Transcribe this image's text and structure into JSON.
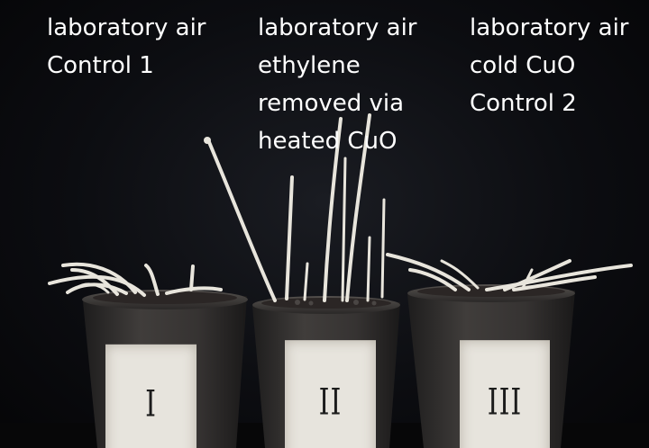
{
  "captions": [
    "laboratory air\nControl 1",
    "laboratory air\nethylene\nremoved via\nheated CuO",
    "laboratory air\ncold CuO\nControl 2"
  ],
  "pot_labels": [
    "I",
    "II",
    "III"
  ],
  "colors": {
    "background": "#0c0d11",
    "caption_text": "#ffffff",
    "seedling": "#e8e5dc",
    "pot": "#3a3837",
    "label_card": "#e7e4dd"
  }
}
